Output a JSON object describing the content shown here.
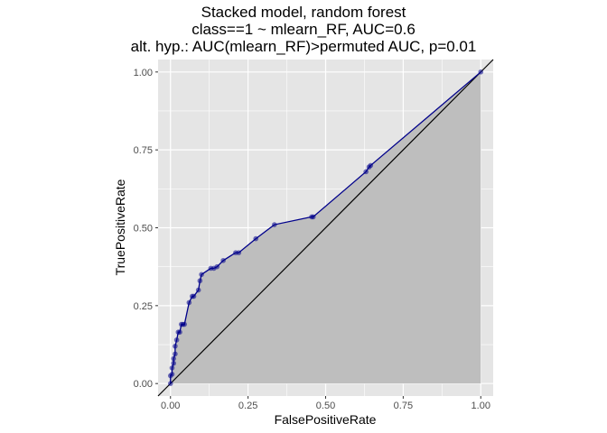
{
  "chart_data": {
    "type": "line",
    "title_lines": [
      "Stacked model, random forest",
      "class==1 ~ mlearn_RF, AUC=0.6",
      "alt. hyp.: AUC(mlearn_RF)>permuted AUC, p=0.01"
    ],
    "xlabel": "FalsePositiveRate",
    "ylabel": "TruePositiveRate",
    "xlim": [
      -0.04,
      1.04
    ],
    "ylim": [
      -0.04,
      1.04
    ],
    "x_ticks": [
      0.0,
      0.25,
      0.5,
      0.75,
      1.0
    ],
    "x_tick_labels": [
      "0.00",
      "0.25",
      "0.50",
      "0.75",
      "1.00"
    ],
    "y_ticks": [
      0.0,
      0.25,
      0.5,
      0.75,
      1.0
    ],
    "y_tick_labels": [
      "0.00",
      "0.25",
      "0.50",
      "0.75",
      "1.00"
    ],
    "grid": true,
    "reference_line": "diagonal",
    "shaded_area_under_curve": true,
    "colors": {
      "panel_bg": "#e5e5e5",
      "grid": "#ffffff",
      "curve": "#00008b",
      "fill": "#bebebe",
      "diagonal": "#000000"
    },
    "series": [
      {
        "x": [
          0.0,
          0.0,
          0.005,
          0.005,
          0.01,
          0.01,
          0.015,
          0.015,
          0.02,
          0.025,
          0.03,
          0.035,
          0.04,
          0.045,
          0.06,
          0.07,
          0.075,
          0.09,
          0.095,
          0.1,
          0.13,
          0.14,
          0.15,
          0.17,
          0.21,
          0.22,
          0.275,
          0.335,
          0.455,
          0.46,
          0.63,
          0.64,
          0.645,
          1.0
        ],
        "y": [
          0.0,
          0.025,
          0.03,
          0.05,
          0.065,
          0.08,
          0.095,
          0.12,
          0.14,
          0.165,
          0.165,
          0.19,
          0.19,
          0.19,
          0.26,
          0.28,
          0.28,
          0.3,
          0.33,
          0.35,
          0.37,
          0.37,
          0.375,
          0.395,
          0.42,
          0.42,
          0.465,
          0.51,
          0.535,
          0.535,
          0.68,
          0.695,
          0.7,
          1.0
        ]
      }
    ]
  }
}
